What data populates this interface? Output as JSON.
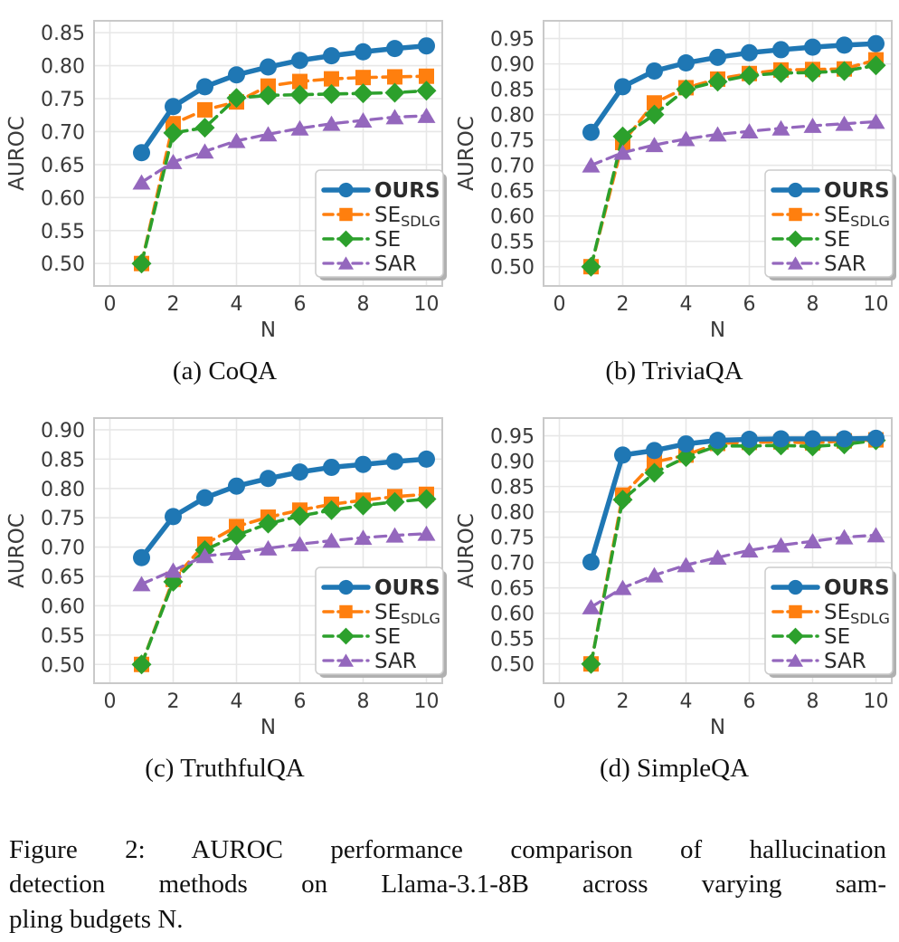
{
  "figure": {
    "caption": "Figure 2: AUROC performance comparison of hallucination detection methods on Llama-3.1-8B across varying sampling budgets N.",
    "caption_lines": [
      "Figure 2: AUROC performance comparison of hallucination",
      "detection methods on Llama-3.1-8B across varying sam-",
      "pling budgets N."
    ]
  },
  "styles": {
    "series": [
      {
        "key": "ours",
        "label": "OURS",
        "label_sub": "",
        "color": "#1f77b4",
        "marker": "circle",
        "line": "solid",
        "bold": true,
        "line_width": 5.5
      },
      {
        "key": "se-sdlg",
        "label": "SE",
        "label_sub": "SDLG",
        "color": "#ff7f0e",
        "marker": "square",
        "line": "dashed",
        "bold": false,
        "line_width": 3.6
      },
      {
        "key": "se",
        "label": "SE",
        "label_sub": "",
        "color": "#2ca02c",
        "marker": "diamond",
        "line": "dashed",
        "bold": false,
        "line_width": 3.6
      },
      {
        "key": "sar",
        "label": "SAR",
        "label_sub": "",
        "color": "#9467bd",
        "marker": "triangle",
        "line": "dashed",
        "bold": false,
        "line_width": 3.3
      }
    ],
    "grid_color": "#e7e7e7",
    "spine_color": "#c9c9c9",
    "tick_color": "#3a3a3a",
    "legend_text_color": "#2b2b2b",
    "legend_border_color": "#cccccc",
    "legend_shadow_color": "#b0b0b0"
  },
  "chart_data": [
    {
      "type": "line",
      "caption": "(a) CoQA",
      "xlabel": "N",
      "ylabel": "AUROC",
      "x": [
        1,
        2,
        3,
        4,
        5,
        6,
        7,
        8,
        9,
        10
      ],
      "xticks": [
        0,
        2,
        4,
        6,
        8,
        10
      ],
      "xlim": [
        -0.5,
        10.5
      ],
      "yticks": [
        0.5,
        0.55,
        0.6,
        0.65,
        0.7,
        0.75,
        0.8,
        0.85
      ],
      "ylim": [
        0.466,
        0.868
      ],
      "grid": true,
      "legend_position": "lower right",
      "series": [
        {
          "name": "OURS",
          "values": [
            0.668,
            0.738,
            0.768,
            0.786,
            0.798,
            0.808,
            0.815,
            0.821,
            0.826,
            0.83
          ]
        },
        {
          "name": "SESDLG",
          "values": [
            0.5,
            0.712,
            0.733,
            0.745,
            0.769,
            0.776,
            0.78,
            0.782,
            0.783,
            0.784
          ]
        },
        {
          "name": "SE",
          "values": [
            0.5,
            0.698,
            0.706,
            0.751,
            0.755,
            0.756,
            0.757,
            0.758,
            0.759,
            0.762
          ]
        },
        {
          "name": "SAR",
          "values": [
            0.623,
            0.654,
            0.67,
            0.686,
            0.696,
            0.705,
            0.712,
            0.717,
            0.722,
            0.724
          ]
        }
      ]
    },
    {
      "type": "line",
      "caption": "(b) TriviaQA",
      "xlabel": "N",
      "ylabel": "AUROC",
      "x": [
        1,
        2,
        3,
        4,
        5,
        6,
        7,
        8,
        9,
        10
      ],
      "xticks": [
        0,
        2,
        4,
        6,
        8,
        10
      ],
      "xlim": [
        -0.5,
        10.5
      ],
      "yticks": [
        0.5,
        0.55,
        0.6,
        0.65,
        0.7,
        0.75,
        0.8,
        0.85,
        0.9,
        0.95
      ],
      "ylim": [
        0.462,
        0.985
      ],
      "grid": true,
      "legend_position": "lower right",
      "series": [
        {
          "name": "OURS",
          "values": [
            0.765,
            0.855,
            0.886,
            0.902,
            0.913,
            0.922,
            0.928,
            0.933,
            0.937,
            0.94
          ]
        },
        {
          "name": "SESDLG",
          "values": [
            0.5,
            0.745,
            0.823,
            0.853,
            0.87,
            0.881,
            0.888,
            0.889,
            0.89,
            0.908
          ]
        },
        {
          "name": "SE",
          "values": [
            0.5,
            0.757,
            0.8,
            0.85,
            0.865,
            0.877,
            0.882,
            0.883,
            0.886,
            0.897
          ]
        },
        {
          "name": "SAR",
          "values": [
            0.7,
            0.725,
            0.74,
            0.752,
            0.761,
            0.767,
            0.773,
            0.778,
            0.782,
            0.786
          ]
        }
      ]
    },
    {
      "type": "line",
      "caption": "(c) TruthfulQA",
      "xlabel": "N",
      "ylabel": "AUROC",
      "x": [
        1,
        2,
        3,
        4,
        5,
        6,
        7,
        8,
        9,
        10
      ],
      "xticks": [
        0,
        2,
        4,
        6,
        8,
        10
      ],
      "xlim": [
        -0.5,
        10.5
      ],
      "yticks": [
        0.5,
        0.55,
        0.6,
        0.65,
        0.7,
        0.75,
        0.8,
        0.85,
        0.9
      ],
      "ylim": [
        0.468,
        0.92
      ],
      "grid": true,
      "legend_position": "lower right",
      "series": [
        {
          "name": "OURS",
          "values": [
            0.682,
            0.752,
            0.784,
            0.804,
            0.817,
            0.828,
            0.836,
            0.841,
            0.846,
            0.85
          ]
        },
        {
          "name": "SESDLG",
          "values": [
            0.5,
            0.645,
            0.705,
            0.735,
            0.751,
            0.763,
            0.773,
            0.78,
            0.786,
            0.79
          ]
        },
        {
          "name": "SE",
          "values": [
            0.5,
            0.641,
            0.695,
            0.72,
            0.74,
            0.753,
            0.763,
            0.771,
            0.777,
            0.782
          ]
        },
        {
          "name": "SAR",
          "values": [
            0.637,
            0.66,
            0.685,
            0.69,
            0.698,
            0.705,
            0.711,
            0.716,
            0.72,
            0.723
          ]
        }
      ]
    },
    {
      "type": "line",
      "caption": "(d) SimpleQA",
      "xlabel": "N",
      "ylabel": "AUROC",
      "x": [
        1,
        2,
        3,
        4,
        5,
        6,
        7,
        8,
        9,
        10
      ],
      "xticks": [
        0,
        2,
        4,
        6,
        8,
        10
      ],
      "xlim": [
        -0.5,
        10.5
      ],
      "yticks": [
        0.5,
        0.55,
        0.6,
        0.65,
        0.7,
        0.75,
        0.8,
        0.85,
        0.9,
        0.95
      ],
      "ylim": [
        0.462,
        0.985
      ],
      "grid": true,
      "legend_position": "lower right",
      "series": [
        {
          "name": "OURS",
          "values": [
            0.701,
            0.912,
            0.921,
            0.934,
            0.941,
            0.943,
            0.944,
            0.944,
            0.944,
            0.945
          ]
        },
        {
          "name": "SESDLG",
          "values": [
            0.5,
            0.833,
            0.898,
            0.912,
            0.935,
            0.937,
            0.938,
            0.936,
            0.94,
            0.942
          ]
        },
        {
          "name": "SE",
          "values": [
            0.5,
            0.824,
            0.877,
            0.908,
            0.93,
            0.93,
            0.931,
            0.929,
            0.933,
            0.941
          ]
        },
        {
          "name": "SAR",
          "values": [
            0.612,
            0.65,
            0.675,
            0.695,
            0.71,
            0.724,
            0.734,
            0.742,
            0.75,
            0.754
          ]
        }
      ]
    }
  ]
}
